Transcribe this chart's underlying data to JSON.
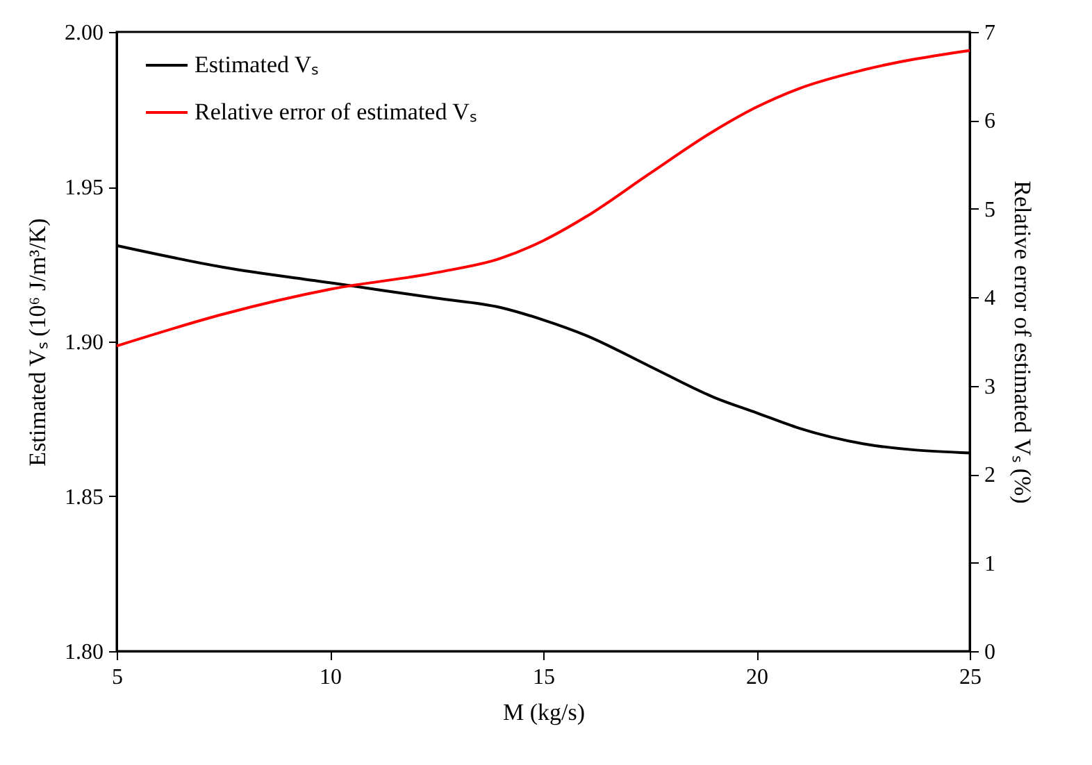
{
  "chart_data": {
    "type": "line",
    "xlabel": "M (kg/s)",
    "ylabel": "Estimated Vₛ (10⁶ J/m³/K)",
    "y2label": "Relative error of estimated Vₛ (%)",
    "x": [
      5,
      7.5,
      10,
      12.5,
      14,
      15,
      16,
      17.5,
      19,
      20,
      21,
      22.5,
      25
    ],
    "series": [
      {
        "name": "Estimated Vₛ",
        "color": "#000000",
        "values": [
          1.931,
          1.924,
          1.919,
          1.914,
          1.911,
          1.907,
          1.902,
          1.892,
          1.882,
          1.877,
          1.872,
          1.867,
          1.864
        ]
      },
      {
        "name": "Relative error of estimated Vₛ",
        "color": "#ff0000",
        "axis": "y2",
        "values": [
          3.45,
          3.81,
          4.09,
          4.28,
          4.44,
          4.64,
          4.91,
          5.4,
          5.88,
          6.15,
          6.36,
          6.57,
          6.79
        ]
      }
    ],
    "xlim": [
      5,
      25
    ],
    "xticks": [
      5,
      10,
      15,
      20,
      25
    ],
    "ylim": [
      1.8,
      2.0
    ],
    "yticks": [
      {
        "value": 1.8,
        "label": "1.80"
      },
      {
        "value": 1.85,
        "label": "1.85"
      },
      {
        "value": 1.9,
        "label": "1.90"
      },
      {
        "value": 1.95,
        "label": "1.95"
      },
      {
        "value": 2.0,
        "label": "2.00"
      }
    ],
    "y2lim": [
      0,
      7
    ],
    "y2ticks": [
      0,
      1,
      2,
      3,
      4,
      5,
      6,
      7
    ],
    "legend": "top left",
    "grid": false,
    "line_style": "solid"
  }
}
